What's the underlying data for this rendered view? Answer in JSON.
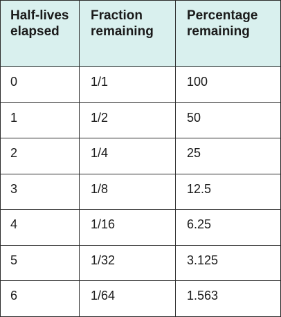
{
  "table": {
    "headers": [
      "Half-lives elapsed",
      "Fraction remaining",
      "Percentage remaining"
    ],
    "rows": [
      [
        "0",
        "1/1",
        "100"
      ],
      [
        "1",
        "1/2",
        "50"
      ],
      [
        "2",
        "1/4",
        "25"
      ],
      [
        "3",
        "1/8",
        "12.5"
      ],
      [
        "4",
        "1/16",
        "6.25"
      ],
      [
        "5",
        "1/32",
        "3.125"
      ],
      [
        "6",
        "1/64",
        "1.563"
      ]
    ],
    "header_bg": "#d9f0ee",
    "border_color": "#2b2b2b"
  }
}
